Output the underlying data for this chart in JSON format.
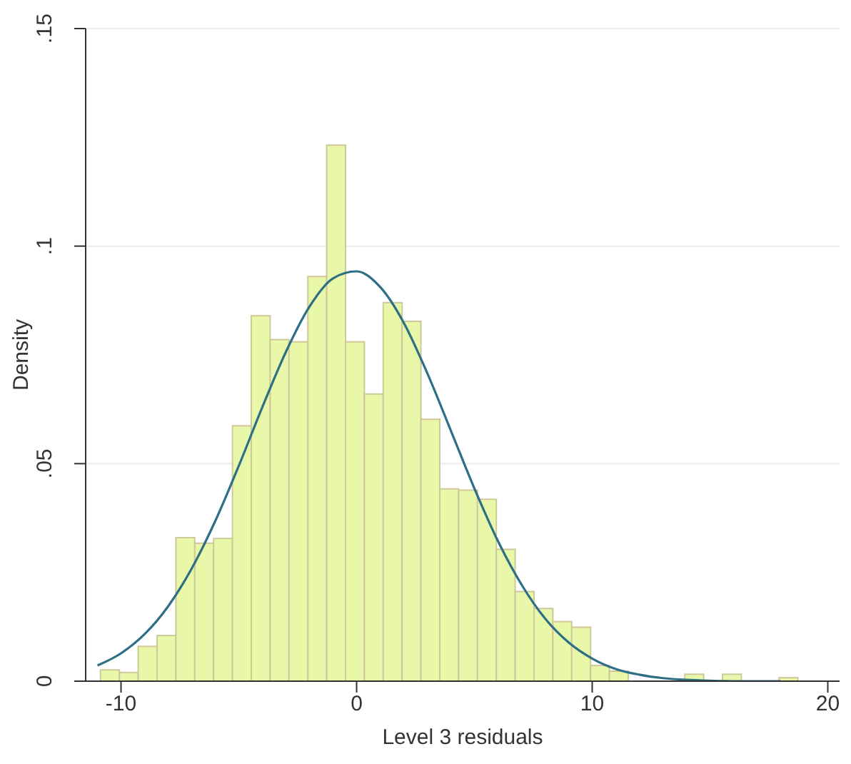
{
  "chart_data": {
    "type": "histogram",
    "xlabel": "Level 3 residuals",
    "ylabel": "Density",
    "bins": [
      -10.87,
      -10.07,
      -9.27,
      -8.47,
      -7.67,
      -6.87,
      -6.07,
      -5.27,
      -4.47,
      -3.67,
      -2.87,
      -2.07,
      -1.27,
      -0.47,
      0.33,
      1.13,
      1.93,
      2.73,
      3.53,
      4.33,
      5.13,
      5.93,
      6.73,
      7.53,
      8.33,
      9.13,
      9.93,
      10.73,
      11.53,
      12.33,
      13.13,
      13.93,
      14.73,
      15.53,
      16.33,
      17.13,
      17.93,
      18.73
    ],
    "values": [
      0.0026,
      0.002,
      0.008,
      0.0105,
      0.033,
      0.0317,
      0.0328,
      0.0587,
      0.084,
      0.0785,
      0.078,
      0.093,
      0.1232,
      0.078,
      0.066,
      0.087,
      0.0827,
      0.0602,
      0.0442,
      0.0439,
      0.0418,
      0.0303,
      0.0206,
      0.0167,
      0.0137,
      0.0124,
      0.0036,
      0.0023,
      0,
      0,
      null,
      0.0016,
      0,
      0.0016,
      0,
      0,
      0.0008
    ],
    "color": "#e8f7a8",
    "series": [
      {
        "type": "line",
        "color": "#2e6f86",
        "x": [
          -11,
          -10,
          -9,
          -8,
          -7,
          -6,
          -5,
          -4,
          -3,
          -2,
          -1,
          0,
          1,
          2,
          3,
          4,
          5,
          6,
          7,
          8,
          9,
          10,
          11,
          12,
          13,
          14,
          15,
          16,
          17,
          18
        ],
        "values": [
          0.0036,
          0.0064,
          0.0108,
          0.0172,
          0.0259,
          0.0368,
          0.0495,
          0.063,
          0.0757,
          0.0861,
          0.0926,
          0.0942,
          0.0906,
          0.0824,
          0.0708,
          0.0576,
          0.0443,
          0.0322,
          0.0222,
          0.0144,
          0.0089,
          0.0052,
          0.0028,
          0.0015,
          0.0007,
          0.0003,
          0.0001,
          0,
          0,
          0
        ]
      }
    ],
    "xlim": [
      -11.5,
      20.5
    ],
    "xticks": [
      -10,
      0,
      10,
      20
    ],
    "ylim": [
      0,
      0.15
    ],
    "yticks": [
      {
        "value": 0,
        "label": "0"
      },
      {
        "value": 0.05,
        "label": ".05"
      },
      {
        "value": 0.1,
        "label": ".1"
      },
      {
        "value": 0.15,
        "label": ".15"
      }
    ],
    "grid": "y"
  }
}
